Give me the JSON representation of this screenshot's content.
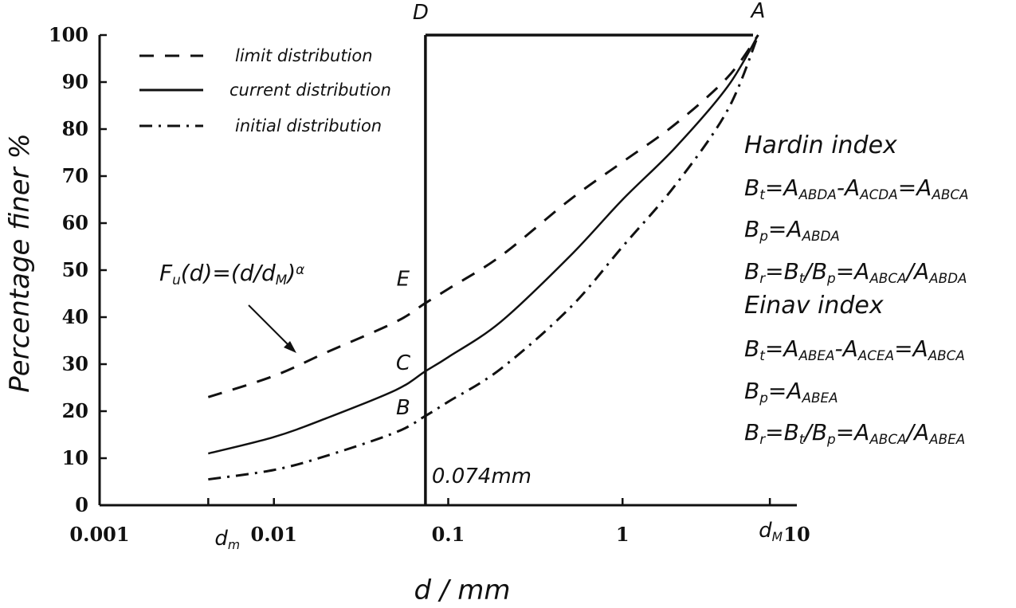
{
  "chart_data": {
    "type": "line",
    "xscale": "log",
    "xlim": [
      0.001,
      10
    ],
    "ylim": [
      0,
      100
    ],
    "grid": false,
    "xlabel": "d / mm",
    "ylabel": "Percentage finer %",
    "x_ticks": [
      "0.001",
      "0.01",
      "0.1",
      "1",
      "10"
    ],
    "y_ticks": [
      "0",
      "10",
      "20",
      "30",
      "40",
      "50",
      "60",
      "70",
      "80",
      "90",
      "100"
    ],
    "x_tick_values": [
      0.001,
      0.01,
      0.1,
      1,
      10
    ],
    "y_tick_values": [
      0,
      10,
      20,
      30,
      40,
      50,
      60,
      70,
      80,
      90,
      100
    ],
    "x_marker_labels": {
      "dm": "d",
      "dm_sub": "m",
      "dM": "d",
      "dM_sub": "M"
    },
    "series": [
      {
        "name": "limit distribution",
        "style": "dashed",
        "x": [
          0.0042,
          0.01,
          0.02,
          0.05,
          0.074,
          0.1,
          0.2,
          0.5,
          1,
          2,
          4,
          6
        ],
        "y": [
          23,
          27.5,
          32.5,
          39,
          43,
          46,
          53,
          65,
          73,
          81,
          91,
          100
        ]
      },
      {
        "name": "current distribution",
        "style": "solid",
        "x": [
          0.0042,
          0.01,
          0.02,
          0.05,
          0.074,
          0.1,
          0.2,
          0.5,
          1,
          2,
          4,
          6
        ],
        "y": [
          11,
          14.5,
          18.5,
          24.5,
          28.5,
          31.5,
          39,
          53,
          65,
          76,
          89,
          100
        ]
      },
      {
        "name": "initial distribution",
        "style": "dash-dot",
        "x": [
          0.0042,
          0.01,
          0.02,
          0.05,
          0.074,
          0.1,
          0.2,
          0.5,
          1,
          2,
          4,
          6
        ],
        "y": [
          5.5,
          7.5,
          10.5,
          15.5,
          19,
          22,
          29,
          42,
          55,
          68,
          84,
          100
        ]
      }
    ],
    "reference_lines": [
      {
        "type": "vertical",
        "x": 0.074,
        "label": "0.074mm"
      },
      {
        "type": "horizontal",
        "y": 100
      }
    ],
    "points": [
      {
        "label": "A",
        "x": 6,
        "y": 100
      },
      {
        "label": "D",
        "x": 0.074,
        "y": 100
      },
      {
        "label": "E",
        "x": 0.074,
        "y": 43
      },
      {
        "label": "C",
        "x": 0.074,
        "y": 28.5
      },
      {
        "label": "B",
        "x": 0.074,
        "y": 19
      }
    ],
    "annotation": {
      "formula": "F",
      "formula_sub": "u",
      "formula_mid": "(d)=(d/d",
      "formula_sub2": "M",
      "formula_end": ")",
      "formula_sup": "α",
      "arrow_to_series": "limit distribution"
    },
    "indices": {
      "hardin_title": "Hardin index",
      "einav_title": "Einav index",
      "hardin": [
        [
          [
            "B",
            ""
          ],
          [
            "t",
            "sub"
          ],
          [
            "=A",
            ""
          ],
          [
            "ABDA",
            "sub"
          ],
          [
            "-A",
            ""
          ],
          [
            "ACDA",
            "sub"
          ],
          [
            "=A",
            ""
          ],
          [
            "ABCA",
            "sub"
          ]
        ],
        [
          [
            "B",
            ""
          ],
          [
            "p",
            "sub"
          ],
          [
            "=A",
            ""
          ],
          [
            "ABDA",
            "sub"
          ]
        ],
        [
          [
            "B",
            ""
          ],
          [
            "r",
            "sub"
          ],
          [
            "=B",
            ""
          ],
          [
            "t",
            "sub"
          ],
          [
            "/B",
            ""
          ],
          [
            "p",
            "sub"
          ],
          [
            "=A",
            ""
          ],
          [
            "ABCA",
            "sub"
          ],
          [
            "/A",
            ""
          ],
          [
            "ABDA",
            "sub"
          ]
        ]
      ],
      "einav": [
        [
          [
            "B",
            ""
          ],
          [
            "t",
            "sub"
          ],
          [
            "=A",
            ""
          ],
          [
            "ABEA",
            "sub"
          ],
          [
            "-A",
            ""
          ],
          [
            "ACEA",
            "sub"
          ],
          [
            "=A",
            ""
          ],
          [
            "ABCA",
            "sub"
          ]
        ],
        [
          [
            "B",
            ""
          ],
          [
            "p",
            "sub"
          ],
          [
            "=A",
            ""
          ],
          [
            "ABEA",
            "sub"
          ]
        ],
        [
          [
            "B",
            ""
          ],
          [
            "r",
            "sub"
          ],
          [
            "=B",
            ""
          ],
          [
            "t",
            "sub"
          ],
          [
            "/B",
            ""
          ],
          [
            "p",
            "sub"
          ],
          [
            "=A",
            ""
          ],
          [
            "ABCA",
            "sub"
          ],
          [
            "/A",
            ""
          ],
          [
            "ABEA",
            "sub"
          ]
        ]
      ]
    }
  }
}
